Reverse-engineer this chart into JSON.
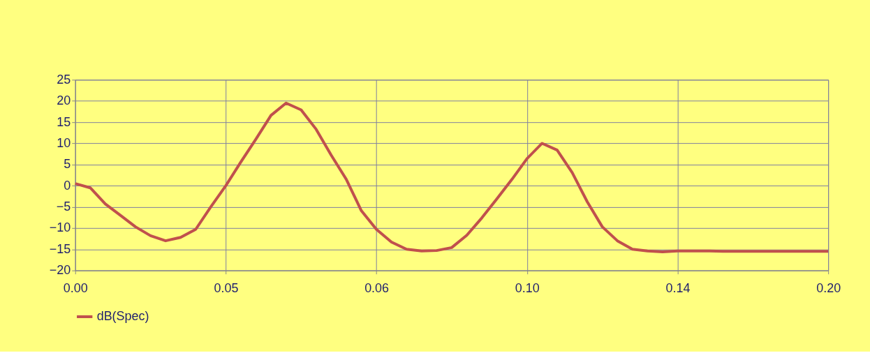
{
  "chart_data": {
    "type": "line",
    "categories": [
      "0.00",
      null,
      null,
      null,
      null,
      null,
      null,
      null,
      null,
      null,
      "0.05",
      null,
      null,
      null,
      null,
      null,
      null,
      null,
      null,
      null,
      "0.06",
      null,
      null,
      null,
      null,
      null,
      null,
      null,
      null,
      null,
      "0.10",
      null,
      null,
      null,
      null,
      null,
      null,
      null,
      null,
      null,
      "0.14",
      null,
      null,
      null,
      null,
      null,
      null,
      null,
      null,
      null,
      "0.20"
    ],
    "series": [
      {
        "name": "dB(Spec)",
        "color": "#c0504d",
        "values": [
          0.5,
          -0.5,
          -4.3,
          -7,
          -9.7,
          -11.8,
          -13,
          -12.2,
          -10.3,
          -5,
          0,
          5.6,
          11,
          16.6,
          19.5,
          17.9,
          13.3,
          7.2,
          1.5,
          -5.9,
          -10.3,
          -13.3,
          -15,
          -15.4,
          -15.3,
          -14.6,
          -11.7,
          -7.6,
          -3.1,
          1.5,
          6.4,
          10,
          8.4,
          3.1,
          -3.8,
          -9.7,
          -13,
          -15,
          -15.4,
          -15.6,
          -15.4,
          -15.4,
          -15.4,
          -15.5,
          -15.5,
          -15.5,
          -15.5,
          -15.5,
          -15.5,
          -15.5,
          -15.5
        ]
      }
    ],
    "ylim": [
      -20,
      25
    ],
    "yticks": [
      -20,
      -15,
      -10,
      -5,
      0,
      5,
      10,
      15,
      20,
      25
    ],
    "grid": true,
    "legend": "bottom",
    "marker": "none",
    "line_style": "solid"
  }
}
